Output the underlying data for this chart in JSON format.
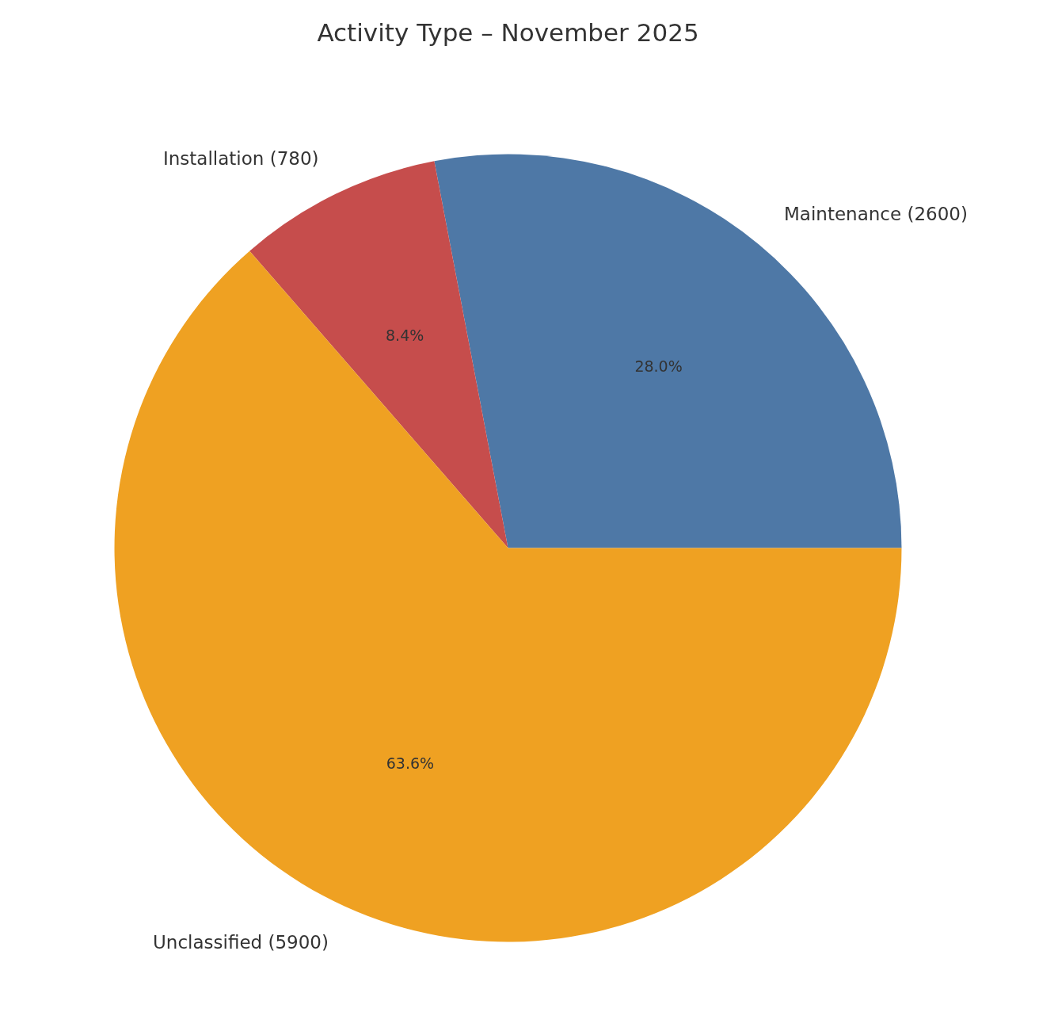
{
  "chart_data": {
    "type": "pie",
    "title": "Activity Type – November 2025",
    "categories": [
      "Maintenance (2600)",
      "Installation (780)",
      "Unclassified (5900)"
    ],
    "values": [
      28.0,
      8.4,
      63.6
    ],
    "colors": [
      "#4e78a6",
      "#c64d4c",
      "#efa122"
    ],
    "value_labels": [
      "28.0%",
      "8.4%",
      "63.6%"
    ]
  }
}
